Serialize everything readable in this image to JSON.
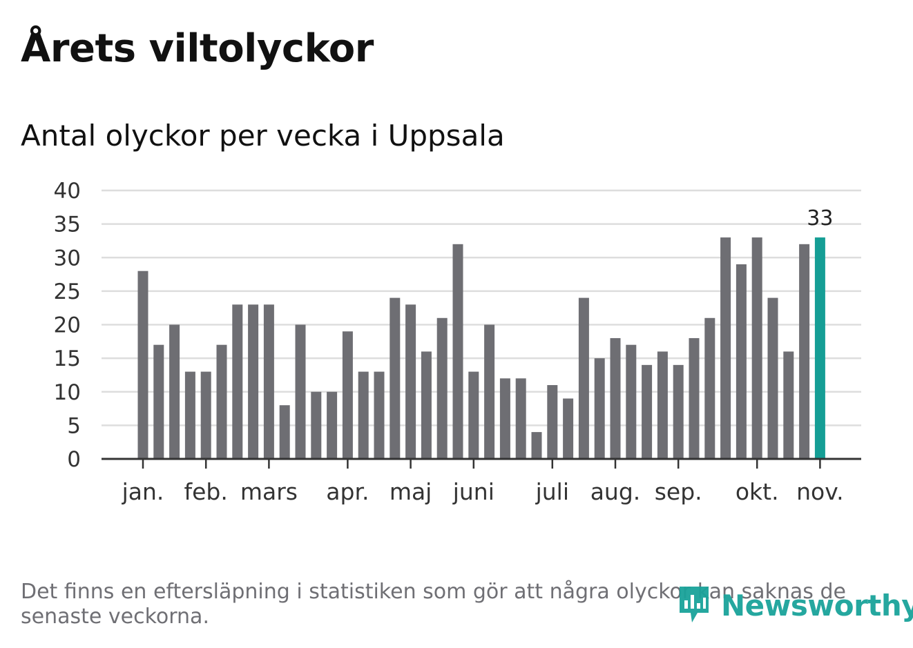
{
  "title": "Årets viltolyckor",
  "footnote": "Det finns en eftersläpning i statistiken som gör att några olyckor kan saknas de senaste veckorna.",
  "brand": {
    "name": "Newsworthy",
    "icon": "newsworthy-logo-icon",
    "color": "#1aa39a"
  },
  "colors": {
    "bar": "#6e6e73",
    "highlight": "#159e95",
    "grid": "#dddddd",
    "axis": "#333333"
  },
  "chart_data": {
    "type": "bar",
    "title": "Antal olyckor per vecka i Uppsala",
    "xlabel": "",
    "ylabel": "",
    "ylim": [
      0,
      40
    ],
    "yticks": [
      0,
      5,
      10,
      15,
      20,
      25,
      30,
      35,
      40
    ],
    "grid": true,
    "values": [
      28,
      17,
      20,
      13,
      13,
      17,
      23,
      23,
      23,
      8,
      20,
      10,
      10,
      19,
      13,
      13,
      24,
      23,
      16,
      21,
      32,
      13,
      20,
      12,
      12,
      4,
      11,
      9,
      24,
      15,
      18,
      17,
      14,
      16,
      14,
      18,
      21,
      33,
      29,
      33,
      24,
      16,
      32,
      33
    ],
    "highlight_index": 43,
    "highlight_label": "33",
    "month_labels": [
      {
        "label": "jan.",
        "week_index": 0
      },
      {
        "label": "feb.",
        "week_index": 4
      },
      {
        "label": "mars",
        "week_index": 8
      },
      {
        "label": "apr.",
        "week_index": 13
      },
      {
        "label": "maj",
        "week_index": 17
      },
      {
        "label": "juni",
        "week_index": 21
      },
      {
        "label": "juli",
        "week_index": 26
      },
      {
        "label": "aug.",
        "week_index": 30
      },
      {
        "label": "sep.",
        "week_index": 34
      },
      {
        "label": "okt.",
        "week_index": 39
      },
      {
        "label": "nov.",
        "week_index": 43
      }
    ]
  }
}
